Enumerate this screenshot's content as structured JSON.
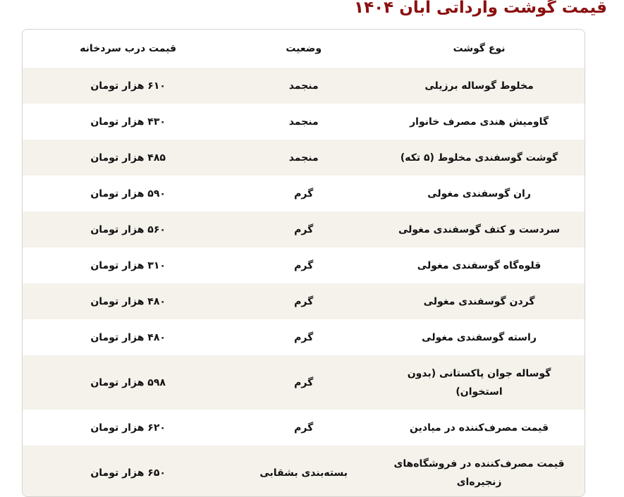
{
  "title": "قیمت گوشت وارداتی آبان ۱۴۰۴",
  "table": {
    "headers": [
      "نوع گوشت",
      "وضعیت",
      "قیمت درب سردخانه"
    ],
    "rows": [
      {
        "type": "مخلوط گوساله برزیلی",
        "status": "منجمد",
        "price": "۶۱۰ هزار تومان"
      },
      {
        "type": "گاومیش هندی مصرف خانوار",
        "status": "منجمد",
        "price": "۴۳۰ هزار تومان"
      },
      {
        "type": "گوشت گوسفندی مخلوط (۵ تکه)",
        "status": "منجمد",
        "price": "۴۸۵ هزار تومان"
      },
      {
        "type": "ران گوسفندی مغولی",
        "status": "گرم",
        "price": "۵۹۰ هزار تومان"
      },
      {
        "type": "سردست و کتف گوسفندی مغولی",
        "status": "گرم",
        "price": "۵۶۰ هزار تومان"
      },
      {
        "type": "قلوه‌گاه گوسفندی مغولی",
        "status": "گرم",
        "price": "۳۱۰ هزار تومان"
      },
      {
        "type": "گردن گوسفندی مغولی",
        "status": "گرم",
        "price": "۴۸۰ هزار تومان"
      },
      {
        "type": "راسته گوسفندی مغولی",
        "status": "گرم",
        "price": "۴۸۰ هزار تومان"
      },
      {
        "type": "گوساله جوان پاکستانی (بدون استخوان)",
        "status": "گرم",
        "price": "۵۹۸ هزار تومان"
      },
      {
        "type": "قیمت مصرف‌کننده در میادین",
        "status": "گرم",
        "price": "۶۲۰ هزار تومان"
      },
      {
        "type": "قیمت مصرف‌کننده در فروشگاه‌های زنجیره‌ای",
        "status": "بسته‌بندی بشقابی",
        "price": "۶۵۰ هزار تومان"
      }
    ]
  }
}
